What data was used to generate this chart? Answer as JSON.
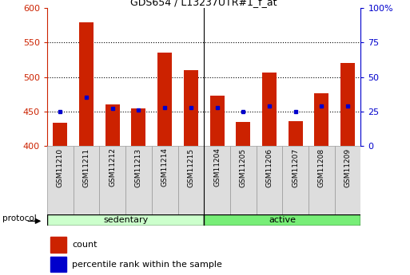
{
  "title": "GDS654 / L13237UTR#1_f_at",
  "samples": [
    "GSM11210",
    "GSM11211",
    "GSM11212",
    "GSM11213",
    "GSM11214",
    "GSM11215",
    "GSM11204",
    "GSM11205",
    "GSM11206",
    "GSM11207",
    "GSM11208",
    "GSM11209"
  ],
  "counts": [
    434,
    580,
    460,
    454,
    535,
    510,
    473,
    435,
    506,
    436,
    476,
    520
  ],
  "percentiles": [
    25,
    35,
    27,
    26,
    28,
    28,
    28,
    25,
    29,
    25,
    29,
    29
  ],
  "base": 400,
  "ylim_left": [
    400,
    600
  ],
  "ylim_right": [
    0,
    100
  ],
  "yticks_left": [
    400,
    450,
    500,
    550,
    600
  ],
  "yticks_right": [
    0,
    25,
    50,
    75,
    100
  ],
  "ytick_right_labels": [
    "0",
    "25",
    "50",
    "75",
    "100%"
  ],
  "group_labels": [
    "sedentary",
    "active"
  ],
  "group_sizes": [
    6,
    6
  ],
  "group_colors": [
    "#ccffcc",
    "#77ee77"
  ],
  "bar_color": "#cc2200",
  "percentile_color": "#0000cc",
  "left_axis_color": "#cc2200",
  "right_axis_color": "#0000cc",
  "bar_width": 0.55,
  "legend_count_label": "count",
  "legend_pct_label": "percentile rank within the sample",
  "protocol_label": "protocol",
  "sample_cell_color": "#dddddd",
  "plot_bg": "#ffffff"
}
